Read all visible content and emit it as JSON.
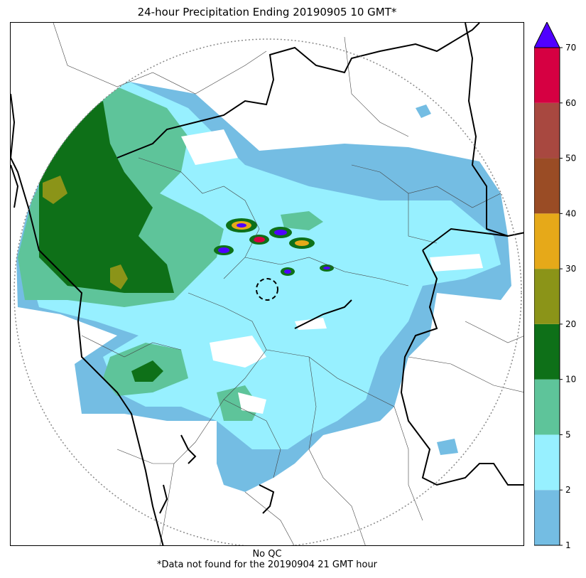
{
  "title": "24-hour Precipitation Ending 20190905 10 GMT*",
  "footer": {
    "qc_note": "No QC",
    "missing_note": "*Data not found for the 20190904 21 GMT hour"
  },
  "colorbar": {
    "ticks": [
      "1",
      "2",
      "5",
      "10",
      "20",
      "30",
      "40",
      "50",
      "60",
      "70"
    ],
    "bins": [
      {
        "from": "1",
        "to": "2",
        "color": "#74bde3"
      },
      {
        "from": "2",
        "to": "5",
        "color": "#97f0ff"
      },
      {
        "from": "5",
        "to": "10",
        "color": "#5ec49a"
      },
      {
        "from": "10",
        "to": "20",
        "color": "#0e7018"
      },
      {
        "from": "20",
        "to": "30",
        "color": "#8b9418"
      },
      {
        "from": "30",
        "to": "40",
        "color": "#e6a919"
      },
      {
        "from": "40",
        "to": "50",
        "color": "#9a4c25"
      },
      {
        "from": "50",
        "to": "60",
        "color": "#a84840"
      },
      {
        "from": "60",
        "to": "70",
        "color": "#d60042"
      }
    ],
    "over_color": "#5000ff",
    "extend": "max"
  },
  "map": {
    "range_ring": "dotted",
    "radar_site_marker": "dashed-circle",
    "boundaries": [
      "state",
      "district"
    ]
  }
}
